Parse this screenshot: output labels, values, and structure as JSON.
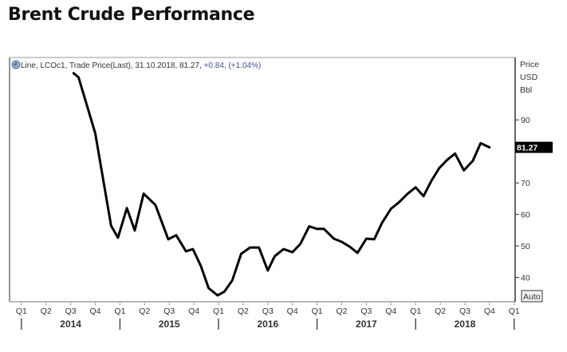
{
  "page": {
    "title": "Brent Crude Performance"
  },
  "legend": {
    "icon": "clock-icon",
    "text": "Line, LCOc1, Trade Price(Last), 31.10.2018, 81.27, ",
    "change": "+0.84, (+1.04%)",
    "change_color": "#3a4fa0"
  },
  "y_axis_header": [
    "Price",
    "USD",
    "Bbl"
  ],
  "last_value_label": "81.27",
  "auto_button_label": "Auto",
  "chart_data": {
    "type": "line",
    "title": "Brent Crude Performance",
    "series": [
      {
        "name": "LCOc1 Trade Price(Last)",
        "color": "#000000",
        "x": [
          2014.53,
          2014.58,
          2014.75,
          2014.91,
          2014.98,
          2015.07,
          2015.15,
          2015.24,
          2015.36,
          2015.49,
          2015.57,
          2015.67,
          2015.74,
          2015.82,
          2015.9,
          2015.99,
          2016.06,
          2016.14,
          2016.23,
          2016.32,
          2016.41,
          2016.5,
          2016.57,
          2016.66,
          2016.75,
          2016.83,
          2016.92,
          2017.0,
          2017.07,
          2017.17,
          2017.25,
          2017.33,
          2017.41,
          2017.5,
          2017.58,
          2017.66,
          2017.75,
          2017.83,
          2017.92,
          2018.0,
          2018.08,
          2018.16,
          2018.24,
          2018.32,
          2018.4,
          2018.49,
          2018.58,
          2018.66,
          2018.75
        ],
        "y": [
          104.8,
          103.5,
          85.7,
          56.4,
          52.6,
          62.0,
          54.9,
          66.6,
          63.0,
          52.1,
          53.4,
          48.3,
          49.0,
          43.7,
          36.6,
          34.3,
          35.5,
          39.1,
          47.5,
          49.5,
          49.5,
          42.2,
          46.7,
          49.0,
          48.0,
          50.6,
          56.2,
          55.4,
          55.4,
          52.3,
          51.3,
          49.8,
          47.8,
          52.3,
          52.1,
          57.4,
          61.8,
          63.8,
          66.6,
          68.6,
          65.8,
          70.7,
          74.7,
          77.3,
          79.3,
          74.0,
          77.0,
          82.6,
          81.27
        ]
      }
    ],
    "xlim": [
      2013.88,
      2019.01
    ],
    "ylim": [
      32.3,
      109.8
    ],
    "y_ticks": [
      40,
      50,
      60,
      70,
      90
    ],
    "x_quarter_ticks": [
      {
        "t": 2014.0,
        "label": "Q1"
      },
      {
        "t": 2014.25,
        "label": "Q2"
      },
      {
        "t": 2014.5,
        "label": "Q3"
      },
      {
        "t": 2014.75,
        "label": "Q4"
      },
      {
        "t": 2015.0,
        "label": "Q1"
      },
      {
        "t": 2015.25,
        "label": "Q2"
      },
      {
        "t": 2015.5,
        "label": "Q3"
      },
      {
        "t": 2015.75,
        "label": "Q4"
      },
      {
        "t": 2016.0,
        "label": "Q1"
      },
      {
        "t": 2016.25,
        "label": "Q2"
      },
      {
        "t": 2016.5,
        "label": "Q3"
      },
      {
        "t": 2016.75,
        "label": "Q4"
      },
      {
        "t": 2017.0,
        "label": "Q1"
      },
      {
        "t": 2017.25,
        "label": "Q2"
      },
      {
        "t": 2017.5,
        "label": "Q3"
      },
      {
        "t": 2017.75,
        "label": "Q4"
      },
      {
        "t": 2018.0,
        "label": "Q1"
      },
      {
        "t": 2018.25,
        "label": "Q2"
      },
      {
        "t": 2018.5,
        "label": "Q3"
      },
      {
        "t": 2018.75,
        "label": "Q4"
      },
      {
        "t": 2019.0,
        "label": "Q1"
      }
    ],
    "x_year_labels": [
      {
        "t": 2014.5,
        "label": "2014"
      },
      {
        "t": 2015.5,
        "label": "2015"
      },
      {
        "t": 2016.5,
        "label": "2016"
      },
      {
        "t": 2017.5,
        "label": "2017"
      },
      {
        "t": 2018.5,
        "label": "2018"
      }
    ],
    "x_year_dividers": [
      2014.0,
      2015.0,
      2016.0,
      2017.0,
      2018.0,
      2019.0
    ],
    "xlabel": "",
    "ylabel": "Price USD Bbl",
    "grid": false,
    "legend_position": "top-left"
  }
}
